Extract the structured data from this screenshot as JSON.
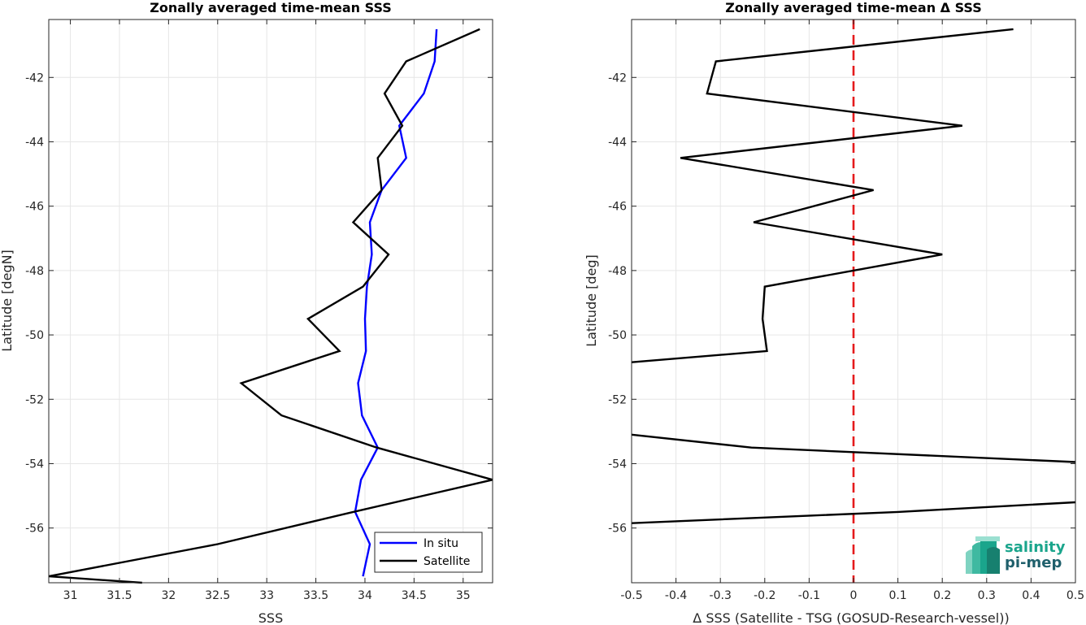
{
  "chart_data": [
    {
      "type": "line",
      "title": "Zonally averaged time-mean SSS",
      "xlabel": "SSS",
      "ylabel": "Latitude [degN]",
      "xlim": [
        30.78,
        35.3
      ],
      "ylim": [
        -57.7,
        -40.2
      ],
      "xticks": [
        31,
        31.5,
        32,
        32.5,
        33,
        33.5,
        34,
        34.5,
        35
      ],
      "xtick_labels": [
        "31",
        "31.5",
        "32",
        "32.5",
        "33",
        "33.5",
        "34",
        "34.5",
        "35"
      ],
      "yticks": [
        -42,
        -44,
        -46,
        -48,
        -50,
        -52,
        -54,
        -56
      ],
      "ytick_labels": [
        "-42",
        "-44",
        "-46",
        "-48",
        "-50",
        "-52",
        "-54",
        "-56"
      ],
      "grid": true,
      "legend_position": "bottom-right",
      "series": [
        {
          "name": "In situ",
          "color": "#0000ff",
          "x": [
            34.73,
            34.71,
            34.6,
            34.35,
            34.42,
            34.17,
            34.05,
            34.07,
            34.02,
            34.0,
            34.01,
            33.93,
            33.97,
            34.13,
            33.96,
            33.9,
            34.05,
            33.98
          ],
          "y": [
            -40.5,
            -41.5,
            -42.5,
            -43.5,
            -44.5,
            -45.5,
            -46.5,
            -47.5,
            -48.5,
            -49.5,
            -50.5,
            -51.5,
            -52.5,
            -53.5,
            -54.5,
            -55.5,
            -56.5,
            -57.5
          ]
        },
        {
          "name": "Satellite",
          "color": "#000000",
          "x": [
            35.17,
            34.42,
            34.2,
            34.38,
            34.13,
            34.17,
            33.88,
            34.24,
            33.98,
            33.42,
            33.74,
            32.74,
            33.15,
            34.12,
            35.3,
            33.88,
            32.5,
            30.78,
            31.73
          ],
          "y": [
            -40.5,
            -41.5,
            -42.5,
            -43.5,
            -44.5,
            -45.5,
            -46.5,
            -47.5,
            -48.5,
            -49.5,
            -50.5,
            -51.5,
            -52.5,
            -53.5,
            -54.5,
            -55.5,
            -56.5,
            -57.5,
            -57.7
          ]
        }
      ]
    },
    {
      "type": "line",
      "title": "Zonally averaged time-mean Δ SSS",
      "xlabel": "Δ SSS (Satellite - TSG (GOSUD-Research-vessel))",
      "ylabel": "Latitude [deg]",
      "xlim": [
        -0.5,
        0.5
      ],
      "ylim": [
        -57.7,
        -40.2
      ],
      "xticks": [
        -0.5,
        -0.4,
        -0.3,
        -0.2,
        -0.1,
        0,
        0.1,
        0.2,
        0.3,
        0.4,
        0.5
      ],
      "xtick_labels": [
        "-0.5",
        "-0.4",
        "-0.3",
        "-0.2",
        "-0.1",
        "0",
        "0.1",
        "0.2",
        "0.3",
        "0.4",
        "0.5"
      ],
      "yticks": [
        -42,
        -44,
        -46,
        -48,
        -50,
        -52,
        -54,
        -56
      ],
      "ytick_labels": [
        "-42",
        "-44",
        "-46",
        "-48",
        "-50",
        "-52",
        "-54",
        "-56"
      ],
      "grid": true,
      "zero_line_color": "#e41a1c",
      "series": [
        {
          "color": "#000000",
          "segments": [
            {
              "x": [
                0.36,
                -0.31,
                -0.33,
                0.245,
                -0.39,
                0.045,
                -0.225,
                0.2,
                -0.2,
                -0.205,
                -0.195,
                -0.5
              ],
              "y": [
                -40.5,
                -41.5,
                -42.5,
                -43.5,
                -44.5,
                -45.5,
                -46.5,
                -47.5,
                -48.5,
                -49.5,
                -50.5,
                -50.85
              ]
            },
            {
              "x": [
                -0.5,
                -0.23,
                0.5
              ],
              "y": [
                -53.1,
                -53.5,
                -53.95
              ]
            },
            {
              "x": [
                0.5,
                0.1,
                -0.5
              ],
              "y": [
                -55.2,
                -55.5,
                -55.85
              ]
            }
          ]
        }
      ]
    }
  ],
  "logo": {
    "line1": "salinity",
    "line2": "pi-mep",
    "color_top": "#1aa58c",
    "color_bottom": "#1f5f6b"
  }
}
